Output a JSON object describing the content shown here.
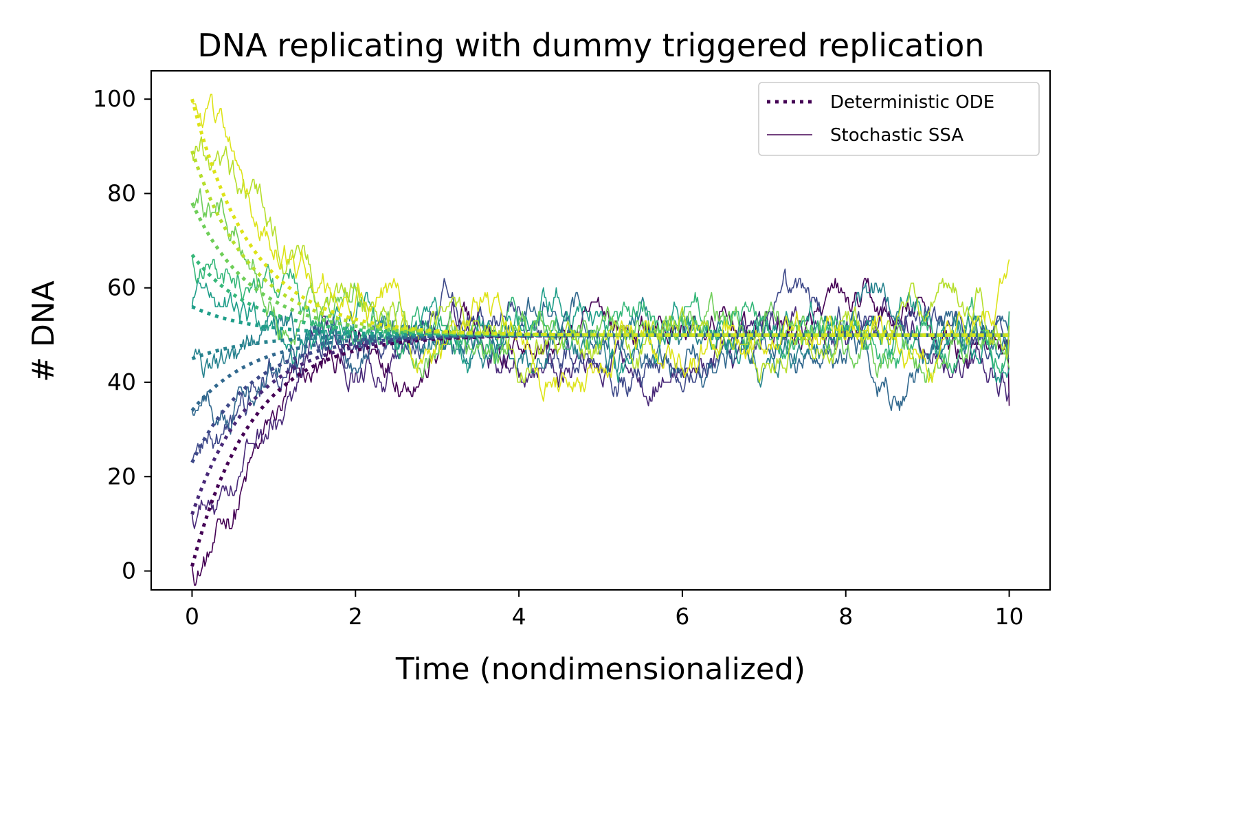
{
  "chart_data": {
    "type": "line",
    "title": "DNA replicating with dummy triggered replication",
    "xlabel": "Time (nondimensionalized)",
    "ylabel": "# DNA",
    "xlim": [
      -0.5,
      10.5
    ],
    "ylim": [
      -4,
      106
    ],
    "x_ticks": [
      0,
      2,
      4,
      6,
      8,
      10
    ],
    "y_ticks": [
      0,
      20,
      40,
      60,
      80,
      100
    ],
    "grid": false,
    "legend_position": "top-right",
    "legend": [
      {
        "label": "Deterministic ODE",
        "style": "dotted",
        "color": "#440154"
      },
      {
        "label": "Stochastic SSA",
        "style": "solid",
        "color": "#440154"
      }
    ],
    "steady_state": 50,
    "deterministic_ode": {
      "decay_rate": 1.35,
      "t_end": 10,
      "initial_values": [
        1,
        12,
        23,
        34,
        45,
        56,
        67,
        78,
        89,
        100
      ]
    },
    "stochastic_ssa": {
      "t_end": 10,
      "final_values": [
        35,
        38,
        49,
        55,
        45,
        43,
        55,
        43,
        52,
        66
      ]
    },
    "series_colors": [
      "#440154",
      "#482878",
      "#3e4989",
      "#31688e",
      "#26828e",
      "#1f9e89",
      "#35b779",
      "#6ece58",
      "#b5de2b",
      "#dde318"
    ]
  }
}
